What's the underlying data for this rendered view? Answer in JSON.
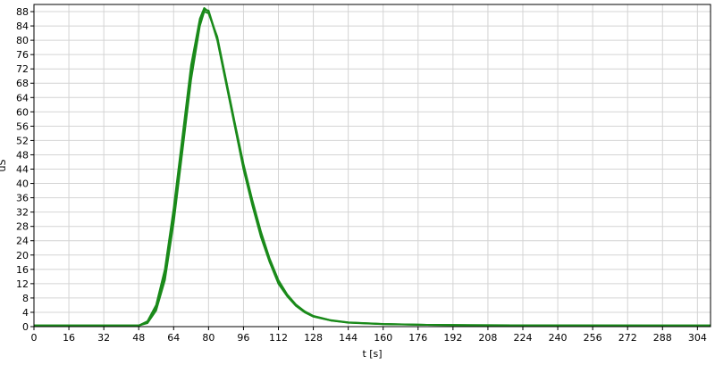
{
  "chart_data": {
    "type": "line",
    "title": "",
    "xlabel": "t [s]",
    "ylabel": "uS",
    "xlim": [
      0,
      310
    ],
    "ylim": [
      0,
      90
    ],
    "grid": true,
    "x_ticks": [
      0,
      16,
      32,
      48,
      64,
      80,
      96,
      112,
      128,
      144,
      160,
      176,
      192,
      208,
      224,
      240,
      256,
      272,
      288,
      304
    ],
    "y_ticks": [
      0,
      4,
      8,
      12,
      16,
      20,
      24,
      28,
      32,
      36,
      40,
      44,
      48,
      52,
      56,
      60,
      64,
      68,
      72,
      76,
      80,
      84,
      88
    ],
    "series_color": "#1a8a1a",
    "series": [
      {
        "x": [
          0,
          48,
          52,
          56,
          60,
          64,
          68,
          72,
          76,
          78,
          80,
          84,
          88,
          92,
          96,
          100,
          104,
          108,
          112,
          116,
          120,
          124,
          128,
          136,
          144,
          160,
          180,
          200,
          240,
          280,
          310
        ],
        "y": [
          0.3,
          0.3,
          1.5,
          6,
          16,
          33,
          53,
          73,
          86,
          89,
          88,
          80,
          68,
          56,
          44,
          34,
          25,
          18,
          12,
          8.5,
          5.8,
          4,
          2.8,
          1.7,
          1.1,
          0.7,
          0.5,
          0.4,
          0.35,
          0.3,
          0.3
        ]
      },
      {
        "x": [
          0,
          48,
          52,
          56,
          60,
          64,
          68,
          72,
          76,
          78,
          80,
          84,
          88,
          92,
          96,
          100,
          104,
          108,
          112,
          116,
          120,
          124,
          128,
          136,
          144,
          160,
          180,
          200,
          240,
          280,
          310
        ],
        "y": [
          0.3,
          0.3,
          1,
          4.5,
          13,
          29,
          49,
          69,
          84,
          88,
          87.5,
          81,
          69,
          57,
          45.5,
          35.5,
          26.5,
          19,
          13,
          9,
          6.2,
          4.3,
          3,
          1.8,
          1.2,
          0.75,
          0.5,
          0.4,
          0.35,
          0.3,
          0.3
        ]
      },
      {
        "x": [
          0,
          48,
          52,
          56,
          60,
          64,
          68,
          72,
          76,
          78,
          80,
          84,
          88,
          92,
          96,
          100,
          104,
          108,
          112,
          116,
          120,
          124,
          128,
          136,
          144,
          160,
          180,
          200,
          240,
          280,
          310
        ],
        "y": [
          0.3,
          0.3,
          1.2,
          5.2,
          14.5,
          31,
          51,
          71,
          85,
          88.5,
          88.3,
          80.5,
          68.5,
          56.5,
          44.8,
          34.8,
          25.8,
          18.5,
          12.5,
          8.8,
          6,
          4.2,
          2.9,
          1.75,
          1.15,
          0.72,
          0.5,
          0.4,
          0.35,
          0.3,
          0.3
        ]
      }
    ]
  }
}
